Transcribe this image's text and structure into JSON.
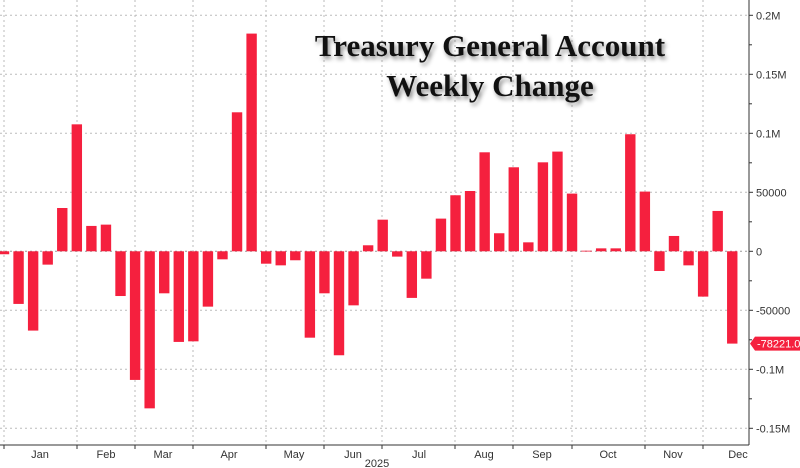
{
  "chart_data": {
    "type": "bar",
    "title": "Treasury General Account\nWeekly Change",
    "title_lines": [
      "Treasury General Account",
      "Weekly Change"
    ],
    "xlabel": "2025",
    "ylabel": "",
    "x_tick_labels": [
      "Jan",
      "Feb",
      "Mar",
      "Apr",
      "May",
      "Jun",
      "Jul",
      "Aug",
      "Sep",
      "Oct",
      "Nov",
      "Dec"
    ],
    "y_tick_labels": [
      "0.2M",
      "0.15M",
      "0.1M",
      "50000",
      "0",
      "-50000",
      "-0.1M",
      "-0.15M"
    ],
    "y_tick_values": [
      200000,
      150000,
      100000,
      50000,
      0,
      -50000,
      -100000,
      -150000
    ],
    "ylim": [
      -165000,
      215000
    ],
    "grid": true,
    "bar_color": "#f5203e",
    "last_value_label": "-78221.00",
    "values": [
      -2500,
      -44600,
      -67200,
      -11300,
      36700,
      107600,
      21500,
      22600,
      -37900,
      -109000,
      -133100,
      -35600,
      -76800,
      -76300,
      -46900,
      -6800,
      117800,
      184500,
      -10500,
      -11900,
      -7600,
      -73200,
      -35600,
      -88100,
      -45800,
      5100,
      26800,
      -4500,
      -39500,
      -23200,
      27700,
      47500,
      51100,
      83900,
      15300,
      71200,
      7600,
      75400,
      84500,
      48900,
      500,
      2500,
      2500,
      99200,
      50600,
      -16700,
      13000,
      -11900,
      -38400,
      34200,
      -78221
    ]
  }
}
